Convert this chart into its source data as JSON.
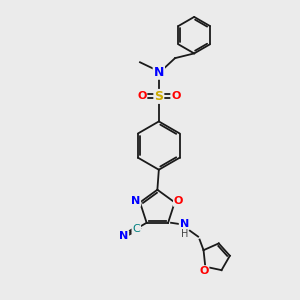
{
  "bg_color": "#ebebeb",
  "bond_color": "#1a1a1a",
  "line_width": 1.3,
  "atom_colors": {
    "N": "#0000ff",
    "O": "#ff0000",
    "S": "#ccaa00",
    "C_teal": "#008080"
  },
  "figsize": [
    3.0,
    3.0
  ],
  "dpi": 100
}
